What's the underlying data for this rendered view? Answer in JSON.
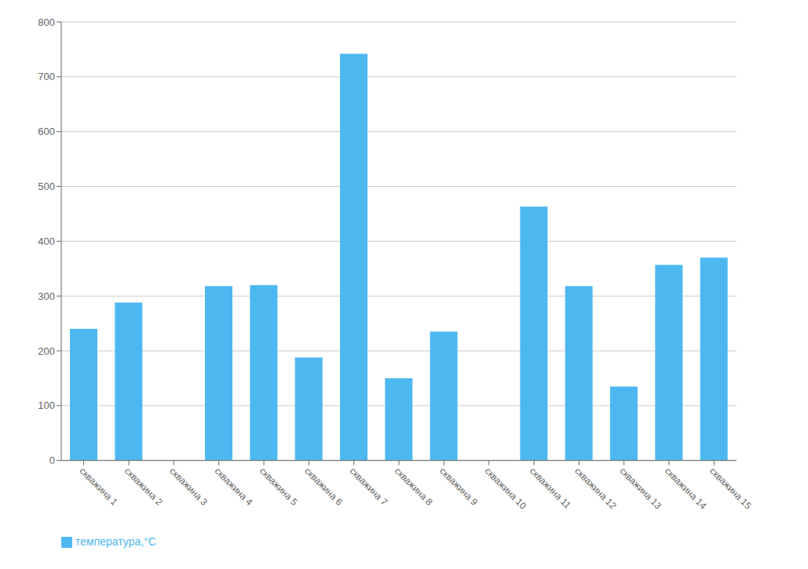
{
  "chart_data": {
    "type": "bar",
    "categories": [
      "скважина 1",
      "скважина 2",
      "скважина 3",
      "скважина 4",
      "скважина 5",
      "скважина 6",
      "скважина 7",
      "скважина 8",
      "скважина 9",
      "скважина 10",
      "скважина 11",
      "скважина 12",
      "скважина 13",
      "скважина 14",
      "скважина 15"
    ],
    "series": [
      {
        "name": "температура,°C",
        "color": "#4db8f0",
        "values": [
          240,
          288,
          0,
          318,
          320,
          188,
          742,
          150,
          235,
          0,
          463,
          318,
          135,
          357,
          370
        ]
      }
    ],
    "ylim": [
      0,
      800
    ],
    "yticks": [
      0,
      100,
      200,
      300,
      400,
      500,
      600,
      700,
      800
    ],
    "grid": true,
    "legend": "lower left"
  }
}
